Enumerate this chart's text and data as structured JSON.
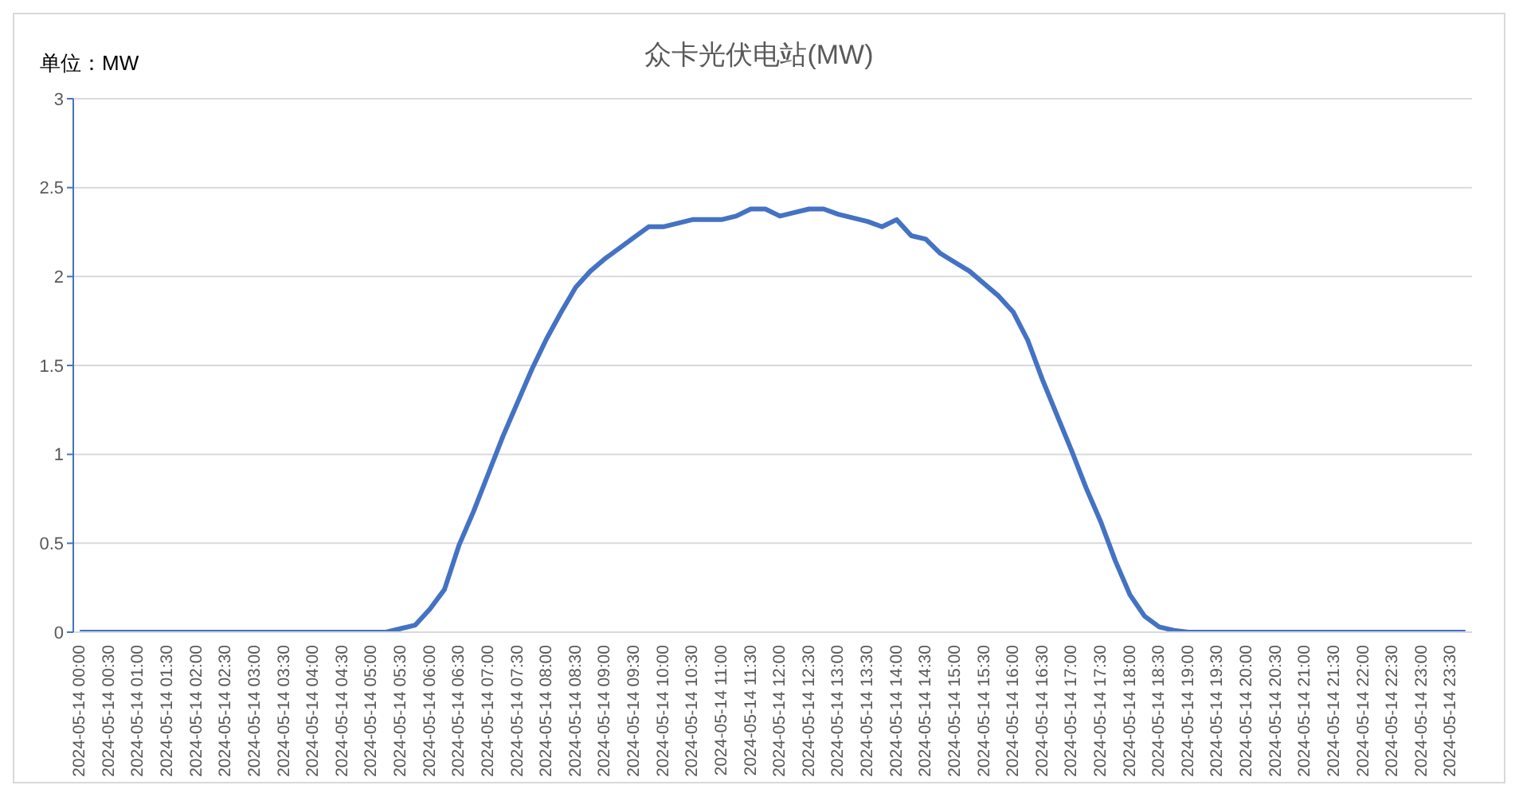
{
  "chart_data": {
    "type": "line",
    "title": "众卡光伏电站(MW)",
    "annotations": [
      "单位：MW"
    ],
    "categories": [
      "2024-05-14 00:00",
      null,
      "2024-05-14 00:30",
      null,
      "2024-05-14 01:00",
      null,
      "2024-05-14 01:30",
      null,
      "2024-05-14 02:00",
      null,
      "2024-05-14 02:30",
      null,
      "2024-05-14 03:00",
      null,
      "2024-05-14 03:30",
      null,
      "2024-05-14 04:00",
      null,
      "2024-05-14 04:30",
      null,
      "2024-05-14 05:00",
      null,
      "2024-05-14 05:30",
      null,
      "2024-05-14 06:00",
      null,
      "2024-05-14 06:30",
      null,
      "2024-05-14 07:00",
      null,
      "2024-05-14 07:30",
      null,
      "2024-05-14 08:00",
      null,
      "2024-05-14 08:30",
      null,
      "2024-05-14 09:00",
      null,
      "2024-05-14 09:30",
      null,
      "2024-05-14 10:00",
      null,
      "2024-05-14 10:30",
      null,
      "2024-05-14 11:00",
      null,
      "2024-05-14 11:30",
      null,
      "2024-05-14 12:00",
      null,
      "2024-05-14 12:30",
      null,
      "2024-05-14 13:00",
      null,
      "2024-05-14 13:30",
      null,
      "2024-05-14 14:00",
      null,
      "2024-05-14 14:30",
      null,
      "2024-05-14 15:00",
      null,
      "2024-05-14 15:30",
      null,
      "2024-05-14 16:00",
      null,
      "2024-05-14 16:30",
      null,
      "2024-05-14 17:00",
      null,
      "2024-05-14 17:30",
      null,
      "2024-05-14 18:00",
      null,
      "2024-05-14 18:30",
      null,
      "2024-05-14 19:00",
      null,
      "2024-05-14 19:30",
      null,
      "2024-05-14 20:00",
      null,
      "2024-05-14 20:30",
      null,
      "2024-05-14 21:00",
      null,
      "2024-05-14 21:30",
      null,
      "2024-05-14 22:00",
      null,
      "2024-05-14 22:30",
      null,
      "2024-05-14 23:00",
      null,
      "2024-05-14 23:30",
      null
    ],
    "series": [
      {
        "color": "#4472c4",
        "values": [
          0,
          0,
          0,
          0,
          0,
          0,
          0,
          0,
          0,
          0,
          0,
          0,
          0,
          0,
          0,
          0,
          0,
          0,
          0,
          0,
          0,
          0,
          0.02,
          0.04,
          0.13,
          0.24,
          0.49,
          0.68,
          0.89,
          1.1,
          1.29,
          1.48,
          1.65,
          1.8,
          1.94,
          2.03,
          2.1,
          2.16,
          2.22,
          2.28,
          2.28,
          2.3,
          2.32,
          2.32,
          2.32,
          2.34,
          2.38,
          2.38,
          2.34,
          2.36,
          2.38,
          2.38,
          2.35,
          2.33,
          2.31,
          2.28,
          2.32,
          2.23,
          2.21,
          2.13,
          2.08,
          2.03,
          1.96,
          1.89,
          1.8,
          1.64,
          1.42,
          1.22,
          1.02,
          0.81,
          0.62,
          0.4,
          0.21,
          0.09,
          0.03,
          0.01,
          0,
          0,
          0,
          0,
          0,
          0,
          0,
          0,
          0,
          0,
          0,
          0,
          0,
          0,
          0,
          0,
          0,
          0,
          0,
          0
        ]
      }
    ],
    "ylim": [
      0,
      3
    ],
    "yticks": [
      0,
      0.5,
      1,
      1.5,
      2,
      2.5,
      3
    ],
    "grid": "y",
    "legend": false,
    "marker": "none",
    "line_style": "solid"
  }
}
